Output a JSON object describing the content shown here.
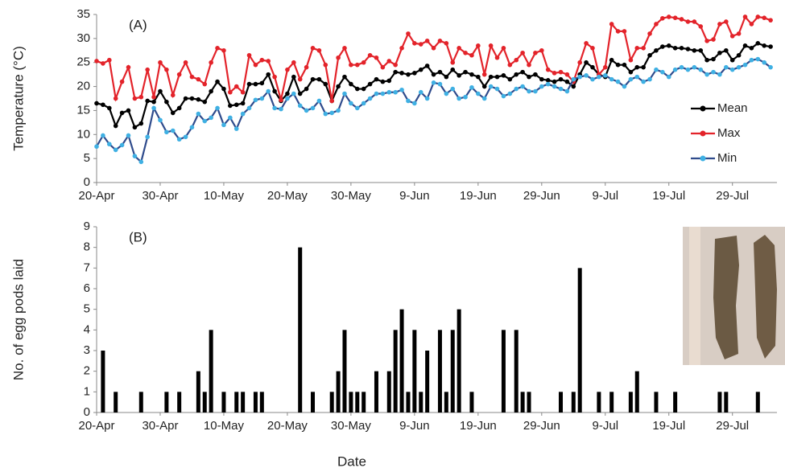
{
  "chart_data": [
    {
      "type": "line",
      "annotation": "(A)",
      "ylabel": "Temperature (°C)",
      "x": [
        0,
        1,
        2,
        3,
        4,
        5,
        6,
        7,
        8,
        9,
        10,
        11,
        12,
        13,
        14,
        15,
        16,
        17,
        18,
        19,
        20,
        21,
        22,
        23,
        24,
        25,
        26,
        27,
        28,
        29,
        30,
        31,
        32,
        33,
        34,
        35,
        36,
        37,
        38,
        39,
        40,
        41,
        42,
        43,
        44,
        45,
        46,
        47,
        48,
        49,
        50,
        51,
        52,
        53,
        54,
        55,
        56,
        57,
        58,
        59,
        60,
        61,
        62,
        63,
        64,
        65,
        66,
        67,
        68,
        69,
        70,
        71,
        72,
        73,
        74,
        75,
        76,
        77,
        78,
        79,
        80,
        81,
        82,
        83,
        84,
        85,
        86,
        87,
        88,
        89,
        90,
        91,
        92,
        93,
        94,
        95,
        96,
        97,
        98,
        99,
        100,
        101,
        102,
        103,
        104,
        105,
        106
      ],
      "series": [
        {
          "name": "Mean",
          "color": "#000000",
          "marker_color": "#000000",
          "values": [
            16.5,
            16.2,
            15.5,
            11.8,
            14.5,
            15,
            11.5,
            12.3,
            17,
            16.8,
            19,
            16.8,
            14.5,
            15.5,
            17.5,
            17.5,
            17.3,
            16.8,
            19,
            21,
            19.5,
            16,
            16.2,
            16.5,
            20.5,
            20.5,
            20.7,
            22.5,
            19,
            17,
            18.5,
            22,
            18.5,
            19.5,
            21.5,
            21.5,
            20.5,
            17,
            20,
            22,
            20.5,
            19.5,
            19.5,
            20.5,
            21.5,
            21,
            21.2,
            23,
            22.8,
            22.5,
            22.8,
            23.5,
            24.3,
            22.5,
            23,
            22,
            23.5,
            22.3,
            23,
            22.5,
            22,
            20,
            22,
            22,
            22.3,
            21.5,
            22.5,
            23,
            22,
            22.5,
            21.5,
            21.3,
            21,
            21.5,
            21,
            20,
            22.5,
            25,
            24,
            22.5,
            22,
            25.5,
            24.5,
            24.5,
            23,
            24,
            24,
            26.5,
            27.5,
            28.3,
            28.5,
            28,
            28,
            27.8,
            27.5,
            27.5,
            25.5,
            25.7,
            27,
            27.5,
            25.5,
            26.5,
            28.5,
            28,
            29,
            28.5,
            28.3
          ]
        },
        {
          "name": "Max",
          "color": "#e3232a",
          "marker_color": "#e3232a",
          "values": [
            25.3,
            24.8,
            25.5,
            17.5,
            21,
            24,
            17.5,
            17.8,
            23.5,
            17.8,
            25,
            23.5,
            18.2,
            22.5,
            25,
            22,
            21.5,
            20.5,
            25,
            28,
            27.5,
            18.8,
            20,
            18.8,
            26.5,
            24.5,
            25.5,
            25.3,
            22,
            17.2,
            23.5,
            25,
            21.5,
            24,
            28,
            27.5,
            24.5,
            17,
            26,
            28,
            24.5,
            24.5,
            25,
            26.5,
            26,
            24,
            25.3,
            24.5,
            28,
            31,
            29,
            28.8,
            29.5,
            28,
            29.5,
            29,
            25,
            28,
            27,
            26.5,
            28.5,
            22.5,
            28.5,
            26,
            28,
            24.5,
            25.5,
            27,
            24.5,
            27,
            27.5,
            23.5,
            22.8,
            23,
            22.5,
            21,
            25,
            29,
            28,
            22.5,
            24,
            33,
            31.5,
            31.5,
            25.5,
            28,
            28,
            31,
            33,
            34.2,
            34.5,
            34.3,
            34,
            33.5,
            33.5,
            32.5,
            29.5,
            29.8,
            33,
            33.5,
            30.5,
            31,
            34.5,
            33,
            34.5,
            34.3,
            33.8
          ]
        },
        {
          "name": "Min",
          "color": "#2f4b8c",
          "marker_color": "#3fb0e3",
          "values": [
            7.5,
            9.8,
            8,
            6.8,
            7.8,
            9.8,
            5.5,
            4.3,
            9.5,
            15.5,
            13,
            10.5,
            10.8,
            9,
            9.5,
            11.5,
            14.3,
            12.8,
            13.5,
            15.5,
            12,
            13.5,
            11.2,
            14.3,
            15.5,
            17.2,
            17.5,
            19,
            15.5,
            15.3,
            17.5,
            18.5,
            16,
            15,
            15.5,
            17,
            14.3,
            14.5,
            15,
            18.5,
            16.5,
            15.5,
            16.5,
            17.5,
            18.5,
            18.5,
            18.8,
            18.8,
            19.3,
            17,
            16.5,
            18.8,
            17.5,
            20.8,
            20.5,
            18.5,
            19.5,
            17.5,
            17.8,
            19.8,
            18.5,
            17.5,
            20,
            19.5,
            18,
            18.5,
            19.5,
            20,
            19,
            19,
            20,
            20.5,
            20,
            19.5,
            19,
            21.5,
            22,
            22.3,
            21.5,
            22,
            22.3,
            21.5,
            21,
            20,
            21.5,
            22,
            21,
            21.5,
            23.5,
            23,
            22,
            23.5,
            24,
            23.5,
            24,
            23.5,
            22.5,
            23,
            22.5,
            24,
            23.5,
            24,
            24.5,
            25.5,
            25.7,
            25,
            24
          ]
        }
      ],
      "xlim": [
        0,
        107
      ],
      "ylim": [
        0,
        35
      ],
      "yticks": [
        0,
        5,
        10,
        15,
        20,
        25,
        30,
        35
      ],
      "xticks": [
        {
          "value": 0,
          "label": "20-Apr"
        },
        {
          "value": 10,
          "label": "30-Apr"
        },
        {
          "value": 20,
          "label": "10-May"
        },
        {
          "value": 30,
          "label": "20-May"
        },
        {
          "value": 40,
          "label": "30-May"
        },
        {
          "value": 50,
          "label": "9-Jun"
        },
        {
          "value": 60,
          "label": "19-Jun"
        },
        {
          "value": 70,
          "label": "29-Jun"
        },
        {
          "value": 80,
          "label": "9-Jul"
        },
        {
          "value": 90,
          "label": "19-Jul"
        },
        {
          "value": 100,
          "label": "29-Jul"
        }
      ],
      "legend": "right"
    },
    {
      "type": "bar",
      "annotation": "(B)",
      "ylabel": "No. of egg pods laid",
      "xlabel": "Date",
      "color": "#000000",
      "x": [
        1,
        3,
        7,
        11,
        13,
        16,
        17,
        18,
        20,
        22,
        23,
        25,
        26,
        32,
        34,
        37,
        38,
        39,
        40,
        41,
        42,
        44,
        46,
        47,
        48,
        49,
        50,
        51,
        52,
        54,
        55,
        56,
        57,
        59,
        64,
        66,
        67,
        68,
        73,
        75,
        76,
        79,
        81,
        84,
        85,
        88,
        91,
        98,
        99,
        104
      ],
      "values": [
        3,
        1,
        1,
        1,
        1,
        2,
        1,
        4,
        1,
        1,
        1,
        1,
        1,
        8,
        1,
        1,
        2,
        4,
        1,
        1,
        1,
        2,
        2,
        4,
        5,
        1,
        4,
        1,
        3,
        4,
        1,
        4,
        5,
        1,
        4,
        4,
        1,
        1,
        1,
        1,
        7,
        1,
        1,
        1,
        2,
        1,
        1,
        1,
        1,
        1
      ],
      "xlim": [
        0,
        107
      ],
      "ylim": [
        0,
        9
      ],
      "yticks": [
        0,
        1,
        2,
        3,
        4,
        5,
        6,
        7,
        8,
        9
      ],
      "xticks": [
        {
          "value": 0,
          "label": "20-Apr"
        },
        {
          "value": 10,
          "label": "30-Apr"
        },
        {
          "value": 20,
          "label": "10-May"
        },
        {
          "value": 30,
          "label": "20-May"
        },
        {
          "value": 40,
          "label": "30-May"
        },
        {
          "value": 50,
          "label": "9-Jun"
        },
        {
          "value": 60,
          "label": "19-Jun"
        },
        {
          "value": 70,
          "label": "29-Jun"
        },
        {
          "value": 80,
          "label": "9-Jul"
        },
        {
          "value": 90,
          "label": "19-Jul"
        },
        {
          "value": 100,
          "label": "29-Jul"
        }
      ]
    }
  ]
}
